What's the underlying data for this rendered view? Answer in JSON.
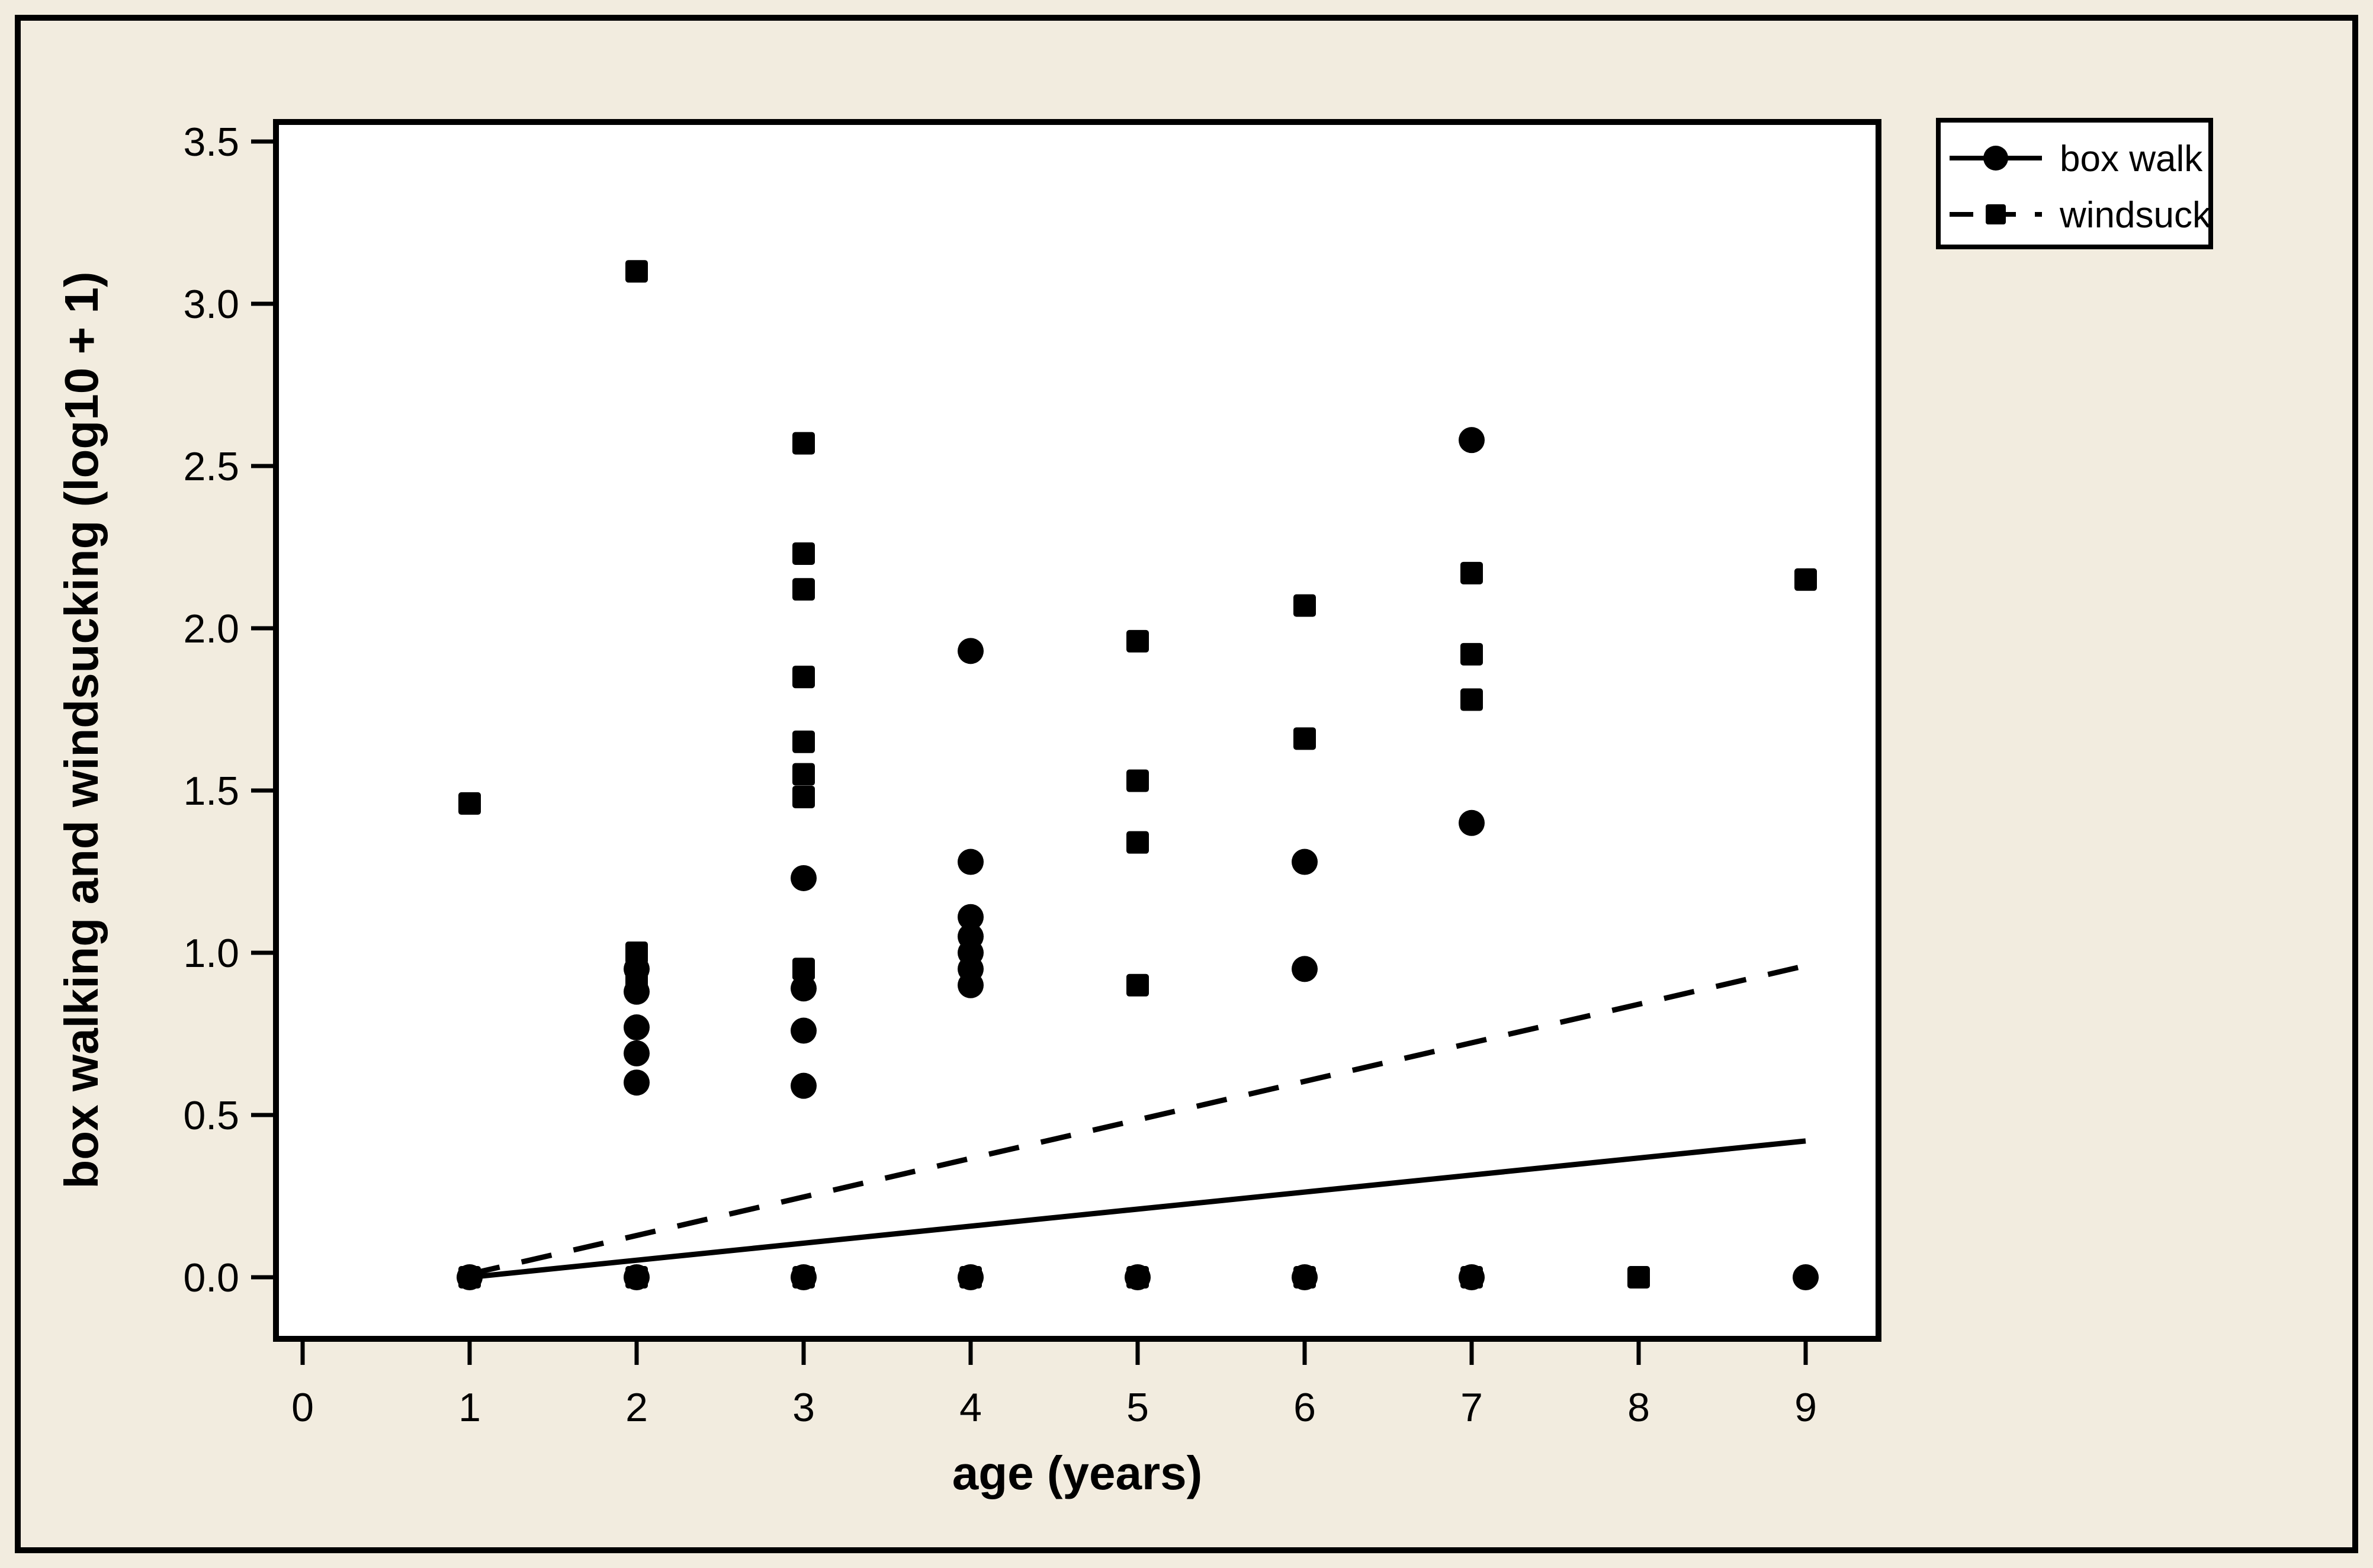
{
  "canvas": {
    "background_color": "#F2ECDF",
    "plot_background_color": "#FFFFFF",
    "foreground_color": "#000000"
  },
  "chart_data": {
    "type": "scatter",
    "title": "",
    "xlabel": "age (years)",
    "ylabel": "box walking and windsucking (log10 + 1)",
    "x_ticks": [
      "0",
      "1",
      "2",
      "3",
      "4",
      "5",
      "6",
      "7",
      "8",
      "9"
    ],
    "y_ticks": [
      "0.0",
      "0.5",
      "1.0",
      "1.5",
      "2.0",
      "2.5",
      "3.0",
      "3.5"
    ],
    "xlim": [
      -0.16,
      9.44
    ],
    "ylim": [
      -0.19,
      3.56
    ],
    "grid": false,
    "legend": {
      "position": "top-right",
      "entries": [
        {
          "label": "box walk",
          "marker": "circle",
          "line": "solid"
        },
        {
          "label": "windsuck",
          "marker": "square",
          "line": "dashed"
        }
      ]
    },
    "series": [
      {
        "name": "box walk",
        "marker": "circle",
        "line": "solid",
        "points": [
          [
            1,
            0.0
          ],
          [
            2,
            0.95
          ],
          [
            2,
            0.88
          ],
          [
            2,
            0.77
          ],
          [
            2,
            0.69
          ],
          [
            2,
            0.6
          ],
          [
            2,
            0.0
          ],
          [
            3,
            1.23
          ],
          [
            3,
            0.89
          ],
          [
            3,
            0.76
          ],
          [
            3,
            0.59
          ],
          [
            3,
            0.0
          ],
          [
            4,
            1.93
          ],
          [
            4,
            1.28
          ],
          [
            4,
            1.11
          ],
          [
            4,
            1.05
          ],
          [
            4,
            1.0
          ],
          [
            4,
            0.95
          ],
          [
            4,
            0.9
          ],
          [
            4,
            0.0
          ],
          [
            5,
            0.0
          ],
          [
            6,
            1.28
          ],
          [
            6,
            0.95
          ],
          [
            6,
            0.0
          ],
          [
            7,
            2.58
          ],
          [
            7,
            1.4
          ],
          [
            7,
            0.0
          ],
          [
            9,
            0.0
          ]
        ],
        "trend": {
          "from": [
            1,
            0.0
          ],
          "to": [
            9,
            0.42
          ]
        }
      },
      {
        "name": "windsuck",
        "marker": "square",
        "line": "dashed",
        "points": [
          [
            1,
            1.46
          ],
          [
            1,
            0.0
          ],
          [
            2,
            3.1
          ],
          [
            2,
            1.0
          ],
          [
            2,
            0.91
          ],
          [
            2,
            0.0
          ],
          [
            3,
            2.57
          ],
          [
            3,
            2.23
          ],
          [
            3,
            2.12
          ],
          [
            3,
            1.85
          ],
          [
            3,
            1.65
          ],
          [
            3,
            1.55
          ],
          [
            3,
            1.48
          ],
          [
            3,
            0.95
          ],
          [
            3,
            0.0
          ],
          [
            4,
            0.0
          ],
          [
            5,
            1.96
          ],
          [
            5,
            1.53
          ],
          [
            5,
            1.34
          ],
          [
            5,
            0.9
          ],
          [
            5,
            0.0
          ],
          [
            6,
            2.07
          ],
          [
            6,
            1.66
          ],
          [
            6,
            0.0
          ],
          [
            7,
            2.17
          ],
          [
            7,
            1.92
          ],
          [
            7,
            1.78
          ],
          [
            7,
            0.0
          ],
          [
            8,
            0.0
          ],
          [
            9,
            2.15
          ]
        ],
        "trend": {
          "from": [
            1,
            0.01
          ],
          "to": [
            9,
            0.96
          ]
        }
      }
    ]
  }
}
